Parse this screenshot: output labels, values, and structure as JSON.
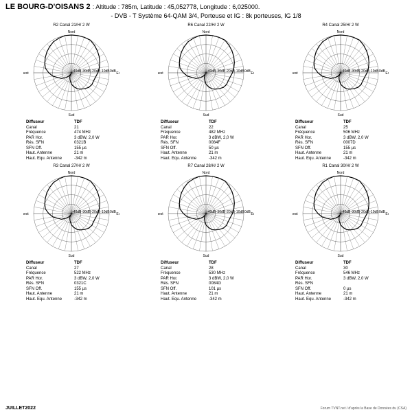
{
  "header": {
    "site_name": "LE BOURG-D'OISANS 2",
    "meta": ": Altitude : 785m,  Latitude : 45,052778, Longitude : 6,025000.",
    "subtitle": "- DVB - T    Système 64-QAM 3/4,  Porteuse et IG : 8k porteuses, IG 1/8"
  },
  "polar_style": {
    "rings_db": [
      -40,
      -30,
      -20,
      -10,
      0
    ],
    "ring_labels": [
      "-40dB",
      "-30dB",
      "-20dB",
      "-10dB",
      "0dB"
    ],
    "grid_color": "#000000",
    "fill_color": "#000000",
    "background": "#ffffff",
    "axis_labels": {
      "n": "Nord",
      "e": "Est",
      "s": "Sud",
      "w": "Ouest"
    },
    "label_fontsize": 5
  },
  "channels": [
    {
      "id": "R2",
      "header": "R2   Canal  21/H/  2 W",
      "pattern_db": [
        0,
        0,
        0,
        0,
        -2,
        -4,
        -6,
        -8,
        -10,
        -12,
        -14,
        -15,
        -15,
        -16,
        -18,
        -20,
        -22,
        -25,
        -28,
        -32,
        -35,
        -38,
        -35,
        -32,
        -28,
        -25,
        -20,
        -16,
        -12,
        -10,
        -8,
        -6,
        -4,
        -2,
        -1,
        0
      ],
      "info": {
        "Diffuseur": "TDF",
        "Canal": "21",
        "Fréquence": "474 MHz",
        "PAR Hor.": "3 dBW, 2,0 W",
        "Rés. SFN": "0321B",
        "SFN Off.": "155 µs",
        "Haut. Antenne": "21 m",
        "Haut. Equ. Antenne": "-342 m"
      }
    },
    {
      "id": "R6",
      "header": "R6   Canal  22/H/  2 W",
      "pattern_db": [
        0,
        0,
        0,
        0,
        -2,
        -4,
        -6,
        -8,
        -10,
        -12,
        -14,
        -15,
        -15,
        -16,
        -18,
        -20,
        -22,
        -25,
        -28,
        -32,
        -35,
        -38,
        -35,
        -32,
        -28,
        -25,
        -20,
        -16,
        -12,
        -10,
        -8,
        -6,
        -4,
        -2,
        -1,
        0
      ],
      "info": {
        "Diffuseur": "TDF",
        "Canal": "22",
        "Fréquence": "482 MHz",
        "PAR Hor.": "3 dBW, 2,0 W",
        "Rés. SFN": "0084F",
        "SFN Off.": "50 µs",
        "Haut. Antenne": "21 m",
        "Haut. Equ. Antenne": "-342 m"
      }
    },
    {
      "id": "R4",
      "header": "R4   Canal  25/H/  2 W",
      "pattern_db": [
        0,
        0,
        0,
        0,
        -2,
        -4,
        -6,
        -8,
        -10,
        -12,
        -14,
        -15,
        -15,
        -16,
        -18,
        -20,
        -22,
        -25,
        -28,
        -32,
        -35,
        -38,
        -35,
        -32,
        -28,
        -25,
        -20,
        -16,
        -12,
        -10,
        -8,
        -6,
        -4,
        -2,
        -1,
        0
      ],
      "info": {
        "Diffuseur": "TDF",
        "Canal": "25",
        "Fréquence": "506 MHz",
        "PAR Hor.": "3 dBW, 2,0 W",
        "Rés. SFN": "0007D",
        "SFN Off.": "155 µs",
        "Haut. Antenne": "21 m",
        "Haut. Equ. Antenne": "-342 m"
      }
    },
    {
      "id": "R3",
      "header": "R3   Canal  27/H/  2 W",
      "pattern_db": [
        0,
        0,
        0,
        0,
        -2,
        -4,
        -6,
        -8,
        -10,
        -12,
        -14,
        -15,
        -15,
        -16,
        -18,
        -20,
        -22,
        -25,
        -28,
        -32,
        -35,
        -38,
        -35,
        -32,
        -28,
        -25,
        -20,
        -16,
        -12,
        -10,
        -8,
        -6,
        -4,
        -2,
        -1,
        0
      ],
      "info": {
        "Diffuseur": "TDF",
        "Canal": "27",
        "Fréquence": "522 MHz",
        "PAR Hor.": "3 dBW, 2,0 W",
        "Rés. SFN": "0321C",
        "SFN Off.": "155 µs",
        "Haut. Antenne": "21 m",
        "Haut. Equ. Antenne": "-342 m"
      }
    },
    {
      "id": "R7",
      "header": "R7   Canal  28/H/  2 W",
      "pattern_db": [
        0,
        0,
        0,
        0,
        -2,
        -4,
        -6,
        -8,
        -10,
        -12,
        -14,
        -15,
        -15,
        -16,
        -18,
        -20,
        -22,
        -25,
        -28,
        -32,
        -35,
        -38,
        -35,
        -32,
        -28,
        -25,
        -20,
        -16,
        -12,
        -10,
        -8,
        -6,
        -4,
        -2,
        -1,
        0
      ],
      "info": {
        "Diffuseur": "TDF",
        "Canal": "28",
        "Fréquence": "530 MHz",
        "PAR Hor.": "3 dBW, 2,0 W",
        "Rés. SFN": "0084G",
        "SFN Off.": "101 µs",
        "Haut. Antenne": "21 m",
        "Haut. Equ. Antenne": "-342 m"
      }
    },
    {
      "id": "R1",
      "header": "R1   Canal  30/H/  2 W",
      "pattern_db": [
        0,
        0,
        0,
        0,
        -2,
        -4,
        -6,
        -8,
        -10,
        -12,
        -14,
        -15,
        -15,
        -16,
        -18,
        -20,
        -22,
        -25,
        -28,
        -32,
        -35,
        -38,
        -35,
        -32,
        -28,
        -25,
        -20,
        -16,
        -12,
        -10,
        -8,
        -6,
        -4,
        -2,
        -1,
        0
      ],
      "info": {
        "Diffuseur": "TDF",
        "Canal": "30",
        "Fréquence": "546 MHz",
        "PAR Hor.": "3 dBW, 2,0 W",
        "Rés. SFN": "",
        "SFN Off.": "0 µs",
        "Haut. Antenne": "21 m",
        "Haut. Equ. Antenne": "-342 m"
      }
    }
  ],
  "footer": {
    "left": "JUILLET2022",
    "right": "Forum TVNT.net / d'après la Base de Données du (CSA)"
  }
}
